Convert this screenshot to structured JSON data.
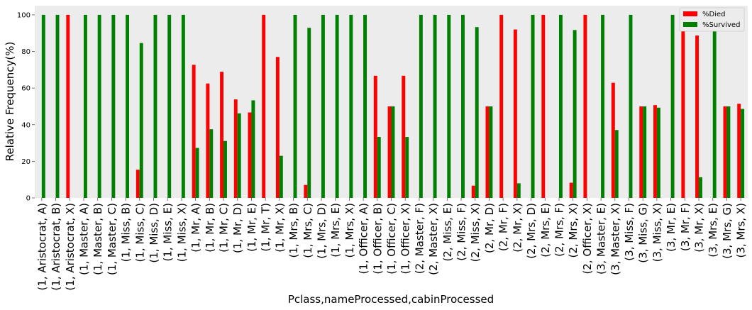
{
  "chart_data": {
    "type": "bar",
    "xlabel": "Pclass,nameProcessed,cabinProcessed",
    "ylabel": "Relative Frequency(%)",
    "ylim": [
      0,
      105
    ],
    "yticks": [
      0,
      20,
      40,
      60,
      80,
      100
    ],
    "grid": false,
    "legend_position": "top-right",
    "background": "#ececec",
    "categories": [
      "(1,  Aristocrat, A)",
      "(1,  Aristocrat, B)",
      "(1,  Aristocrat, X)",
      "(1,  Master, A)",
      "(1,  Master, B)",
      "(1,  Master, C)",
      "(1,  Miss, B)",
      "(1,  Miss, C)",
      "(1,  Miss, D)",
      "(1,  Miss, E)",
      "(1,  Miss, X)",
      "(1,  Mr, A)",
      "(1,  Mr, B)",
      "(1,  Mr, C)",
      "(1,  Mr, D)",
      "(1,  Mr, E)",
      "(1,  Mr, T)",
      "(1,  Mr, X)",
      "(1,  Mrs, B)",
      "(1,  Mrs, C)",
      "(1,  Mrs, D)",
      "(1,  Mrs, E)",
      "(1,  Mrs, X)",
      "(1,  Officer, A)",
      "(1,  Officer, B)",
      "(1,  Officer, C)",
      "(1,  Officer, X)",
      "(2,  Master, F)",
      "(2,  Master, X)",
      "(2,  Miss, E)",
      "(2,  Miss, F)",
      "(2,  Miss, X)",
      "(2,  Mr, D)",
      "(2,  Mr, F)",
      "(2,  Mr, X)",
      "(2,  Mrs, D)",
      "(2,  Mrs, E)",
      "(2,  Mrs, F)",
      "(2,  Mrs, X)",
      "(2,  Officer, X)",
      "(3,  Master, E)",
      "(3,  Master, X)",
      "(3,  Miss, F)",
      "(3,  Miss, G)",
      "(3,  Miss, X)",
      "(3,  Mr, E)",
      "(3,  Mr, F)",
      "(3,  Mr, X)",
      "(3,  Mrs, E)",
      "(3,  Mrs, G)",
      "(3,  Mrs, X)"
    ],
    "series": [
      {
        "name": "%Died",
        "color": "#ff0000",
        "values": [
          0,
          0,
          100,
          0,
          0,
          0,
          0,
          15.4,
          0,
          0,
          0,
          72.7,
          62.5,
          68.9,
          53.8,
          46.7,
          100,
          77.0,
          0,
          7.1,
          0,
          0,
          0,
          0,
          66.7,
          50,
          66.7,
          0,
          0,
          0,
          0,
          6.7,
          50,
          100,
          92.0,
          0,
          100,
          0,
          8.3,
          100,
          0,
          62.9,
          0,
          50,
          50.7,
          0,
          100,
          88.7,
          0,
          50,
          51.4
        ]
      },
      {
        "name": "%Survived",
        "color": "#008000",
        "values": [
          100,
          100,
          0,
          100,
          100,
          100,
          100,
          84.6,
          100,
          100,
          100,
          27.3,
          37.5,
          31.1,
          46.2,
          53.3,
          0,
          23.0,
          100,
          92.9,
          100,
          100,
          100,
          100,
          33.3,
          50,
          33.3,
          100,
          100,
          100,
          100,
          93.3,
          50,
          0,
          8.0,
          100,
          0,
          100,
          91.7,
          0,
          100,
          37.1,
          100,
          50,
          49.3,
          100,
          0,
          11.3,
          100,
          50,
          48.6
        ]
      }
    ]
  }
}
